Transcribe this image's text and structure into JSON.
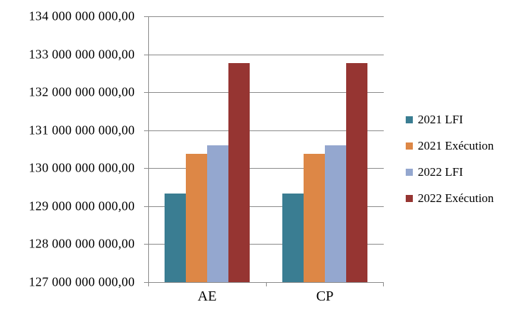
{
  "chart_data": {
    "type": "bar",
    "title": "",
    "categories": [
      "AE",
      "CP"
    ],
    "series": [
      {
        "name": "2021 LFI",
        "color": "#3a7d92",
        "values": [
          129340000000,
          129340000000
        ]
      },
      {
        "name": "2021 Exécution",
        "color": "#dd8746",
        "values": [
          130380000000,
          130380000000
        ]
      },
      {
        "name": "2022 LFI",
        "color": "#94a7cf",
        "values": [
          130600000000,
          130600000000
        ]
      },
      {
        "name": "2022 Exécution",
        "color": "#963532",
        "values": [
          132770000000,
          132770000000
        ]
      }
    ],
    "ylim": [
      127000000000,
      134000000000
    ],
    "ytick_step": 1000000000,
    "ytick_labels": [
      "134 000 000 000,00",
      "133 000 000 000,00",
      "132 000 000 000,00",
      "131 000 000 000,00",
      "130 000 000 000,00",
      "129 000 000 000,00",
      "128 000 000 000,00",
      "127 000 000 000,00"
    ],
    "grid": true,
    "legend_position": "right"
  },
  "style": {
    "background": "#ffffff",
    "grid_color": "#8a8a8a",
    "axis_color": "#8a8a8a",
    "text_color": "#000000"
  }
}
